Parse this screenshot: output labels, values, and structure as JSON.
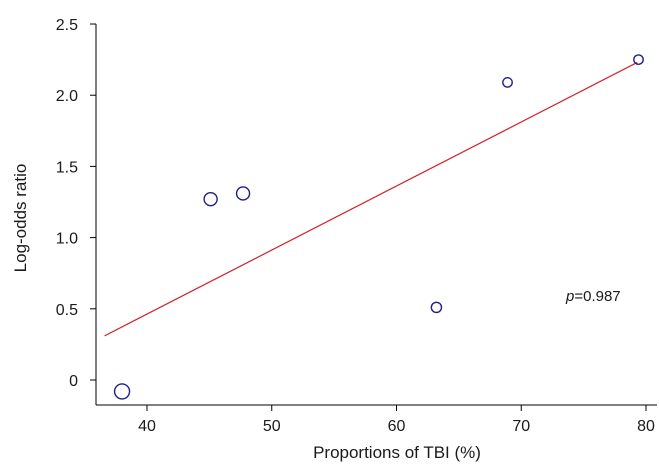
{
  "chart_data": {
    "type": "scatter",
    "xlabel": "Proportions of TBI (%)",
    "ylabel": "Log-odds ratio",
    "xlim": [
      36,
      80.5
    ],
    "ylim": [
      -0.15,
      2.5
    ],
    "xticks": [
      40,
      50,
      60,
      70,
      80
    ],
    "yticks": [
      0,
      0.5,
      1.0,
      1.5,
      2.0,
      2.5
    ],
    "ytick_labels": [
      "0",
      "0.5",
      "1.0",
      "1.5",
      "2.0",
      "2.5"
    ],
    "xtick_labels": [
      "40",
      "50",
      "60",
      "70",
      "80"
    ],
    "points": [
      {
        "x": 38.0,
        "y": -0.08,
        "weight": 3
      },
      {
        "x": 45.1,
        "y": 1.27,
        "weight": 2.5
      },
      {
        "x": 47.7,
        "y": 1.31,
        "weight": 2.5
      },
      {
        "x": 63.2,
        "y": 0.51,
        "weight": 1.8
      },
      {
        "x": 68.9,
        "y": 2.09,
        "weight": 1.6
      },
      {
        "x": 79.4,
        "y": 2.25,
        "weight": 1.6
      }
    ],
    "fit_line": {
      "x": [
        36.6,
        79.3
      ],
      "y": [
        0.31,
        2.23
      ],
      "color": "#d42027"
    },
    "point_color": "#1f1f8a",
    "annotation": {
      "p_label": "p",
      "p_value": "=0.987"
    },
    "grid": false
  }
}
